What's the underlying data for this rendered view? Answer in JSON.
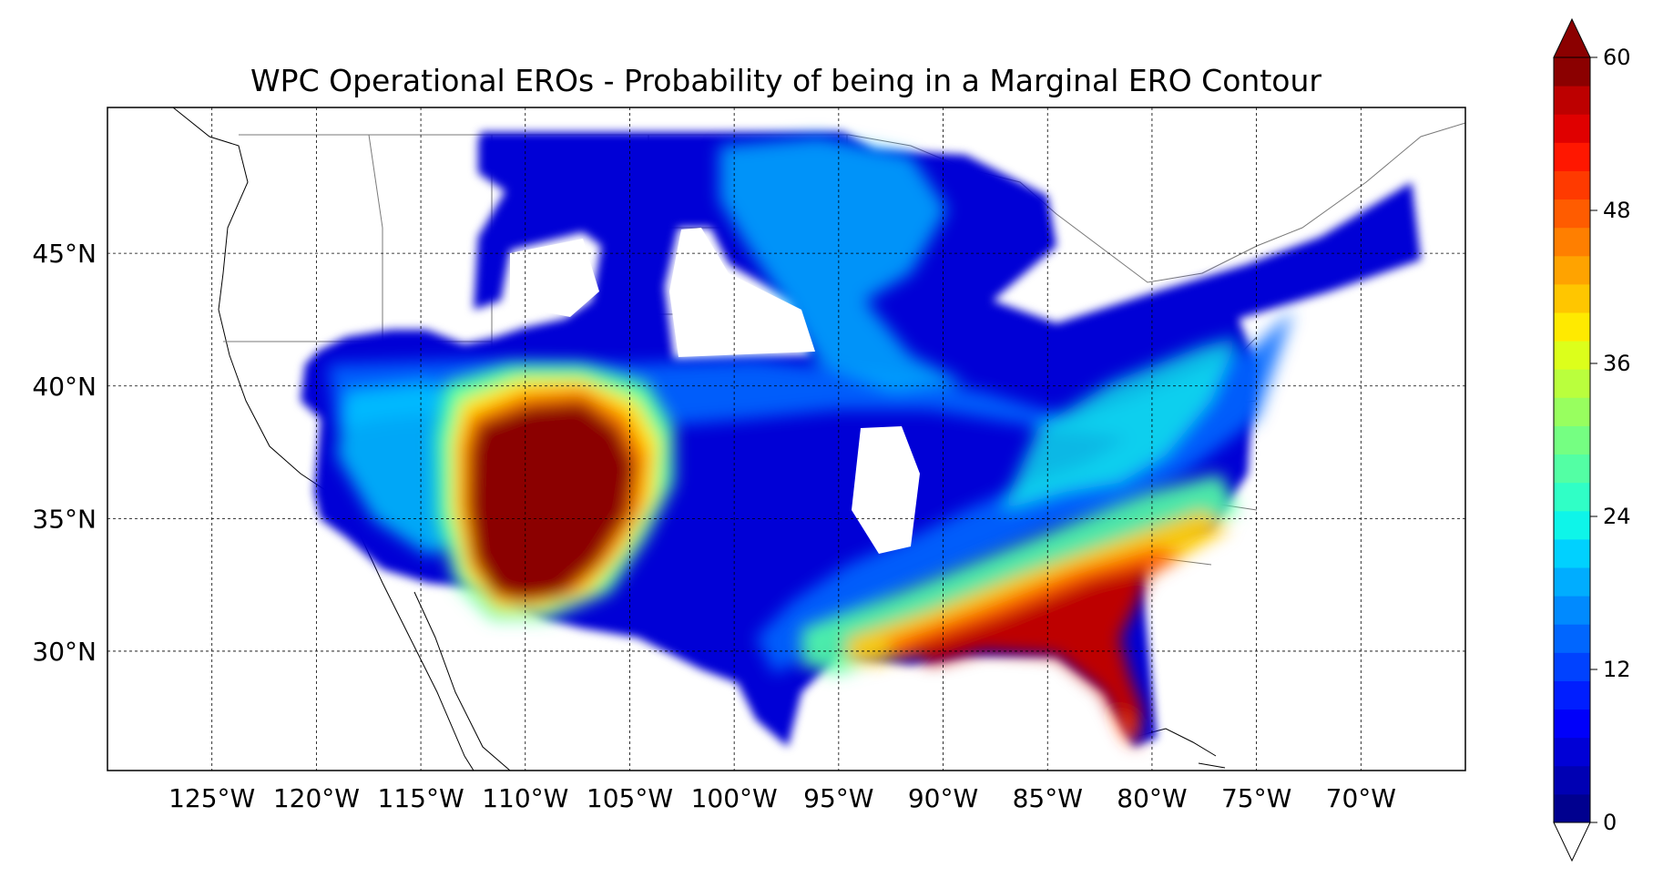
{
  "title": "WPC Operational EROs - Probability of being in a Marginal ERO Contour",
  "map": {
    "longitude_labels": [
      "125°W",
      "120°W",
      "115°W",
      "110°W",
      "105°W",
      "100°W",
      "95°W",
      "90°W",
      "85°W",
      "80°W",
      "75°W",
      "70°W"
    ],
    "longitude_values": [
      -125,
      -120,
      -115,
      -110,
      -105,
      -100,
      -95,
      -90,
      -85,
      -80,
      -75,
      -70
    ],
    "latitude_labels": [
      "30°N",
      "35°N",
      "40°N",
      "45°N"
    ],
    "latitude_values": [
      30,
      35,
      40,
      45
    ],
    "lon_range": [
      -130,
      -65
    ],
    "lat_range": [
      25.5,
      50.5
    ],
    "gridlines": true
  },
  "colorbar": {
    "ticks": [
      0,
      12,
      24,
      36,
      48,
      60
    ],
    "tick_labels": [
      "0",
      "12",
      "24",
      "36",
      "48",
      "60"
    ],
    "range": [
      0,
      60
    ],
    "step": 3,
    "extend": "both",
    "colormap": "jet",
    "colors": [
      "#00008f",
      "#0000b3",
      "#0000d6",
      "#0000fa",
      "#001eff",
      "#0042ff",
      "#0066ff",
      "#008aff",
      "#00adff",
      "#00d1ff",
      "#0ef5e9",
      "#30ffc6",
      "#53ffa4",
      "#75ff82",
      "#98ff5f",
      "#baff3d",
      "#dcff1b",
      "#ffea00",
      "#ffc600",
      "#ffa300",
      "#ff7f00",
      "#ff5c00",
      "#ff3a00",
      "#ff1700",
      "#e00000",
      "#bd0000",
      "#8b0000"
    ]
  }
}
